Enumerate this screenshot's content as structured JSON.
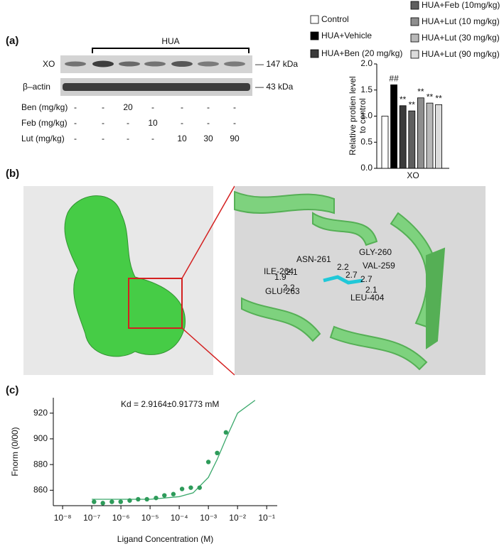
{
  "panel_labels": [
    "(a)",
    "(b)",
    "(c)"
  ],
  "blot": {
    "group_label": "HUA",
    "rows": [
      {
        "protein": "XO",
        "size": "— 147 kDa"
      },
      {
        "protein": "β–actin",
        "size": "— 43 kDa"
      }
    ]
  },
  "dose_table": {
    "rows": [
      {
        "label": "Ben (mg/kg)",
        "cells": [
          "-",
          "-",
          20,
          "-",
          "-",
          "-",
          "-"
        ]
      },
      {
        "label": "Feb (mg/kg)",
        "cells": [
          "-",
          "-",
          "-",
          10,
          "-",
          "-",
          "-"
        ]
      },
      {
        "label": "Lut (mg/kg)",
        "cells": [
          "-",
          "-",
          "-",
          "-",
          10,
          30,
          90
        ]
      }
    ]
  },
  "docking": {
    "residues": [
      "GLY-260",
      "ASN-261",
      "VAL-259",
      "ILE-264",
      "GLU-263",
      "LEU-404"
    ],
    "distances": [
      "1.9",
      "2.1",
      "2.2",
      "2.7",
      "2.2",
      "2.7",
      "2.1"
    ]
  },
  "chart_data": [
    {
      "type": "bar",
      "categories": [
        "XO"
      ],
      "ylabel": [
        "Relative protien level",
        "to control"
      ],
      "ylim": [
        0,
        2
      ],
      "yticks": [
        {
          "value": 0,
          "label": "0.0"
        },
        0.5,
        {
          "value": 1,
          "label": "1.0"
        },
        1.5,
        {
          "value": 2,
          "label": "2.0"
        }
      ],
      "series": [
        {
          "name": "Control",
          "color": "#ffffff",
          "values": [
            1.0
          ]
        },
        {
          "name": "HUA+Vehicle",
          "color": "#000000",
          "values": [
            1.6
          ]
        },
        {
          "name": "HUA+Ben (20 mg/kg)",
          "color": "#3a3a3a",
          "values": [
            1.2
          ]
        },
        {
          "name": "HUA+Feb (10mg/kg)",
          "color": "#5e5e5e",
          "values": [
            1.1
          ]
        },
        {
          "name": "HUA+Lut (10 mg/kg)",
          "color": "#8e8e8e",
          "values": [
            1.35
          ]
        },
        {
          "name": "HUA+Lut (30 mg/kg)",
          "color": "#b8b8b8",
          "values": [
            1.25
          ]
        },
        {
          "name": "HUA+Lut (90 mg/kg)",
          "color": "#dcdcdc",
          "values": [
            1.22
          ]
        }
      ],
      "significance": [
        null,
        "##",
        "**",
        "**",
        "**",
        "**",
        "**"
      ]
    },
    {
      "type": "scatter",
      "annotation": "Kd = 2.9164±0.91773 mM",
      "xlabel": "Ligand Concentration (M)",
      "ylabel": "Fnorm (0/00)",
      "xlog": true,
      "xlim": [
        4.8e-09,
        0.23
      ],
      "xticks": [
        {
          "value": 1e-08,
          "label": "10⁻⁸"
        },
        {
          "value": 1e-07,
          "label": "10⁻⁷"
        },
        {
          "value": 1e-06,
          "label": "10⁻⁶"
        },
        {
          "value": 1e-05,
          "label": "10⁻⁵"
        },
        {
          "value": 0.0001,
          "label": "10⁻⁴"
        },
        {
          "value": 0.001,
          "label": "10⁻³"
        },
        {
          "value": 0.01,
          "label": "10⁻²"
        },
        {
          "value": 0.1,
          "label": "10⁻¹"
        }
      ],
      "ylim": [
        848,
        932
      ],
      "yticks": [
        860,
        880,
        900,
        920
      ],
      "color": "#2e9b5a",
      "x": [
        1.2e-07,
        2.4e-07,
        4.9e-07,
        9.8e-07,
        2e-06,
        3.9e-06,
        7.8e-06,
        1.6e-05,
        3.1e-05,
        6.3e-05,
        0.000125,
        0.00025,
        0.0005,
        0.001,
        0.002,
        0.004
      ],
      "values": [
        851,
        850,
        851,
        851,
        852,
        853,
        853,
        854,
        856,
        857,
        861,
        862,
        862,
        882,
        889,
        905
      ],
      "fit": {
        "color": "#3aa86b",
        "x": [
          1e-07,
          1e-05,
          0.0001,
          0.0003,
          0.001,
          0.002,
          0.004,
          0.01,
          0.04
        ],
        "y": [
          853,
          853,
          855,
          858,
          870,
          884,
          900,
          920,
          930
        ]
      }
    }
  ]
}
